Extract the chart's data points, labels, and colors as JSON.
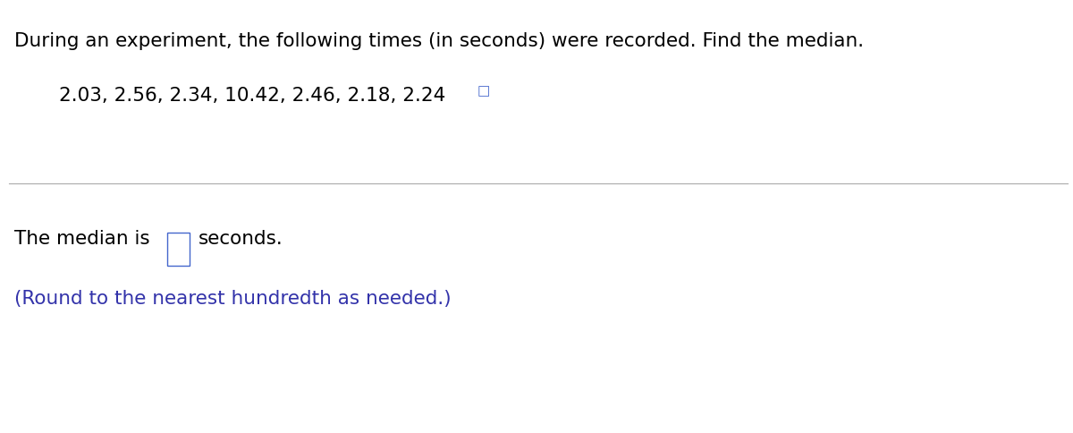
{
  "title_text": "During an experiment, the following times (in seconds) were recorded. Find the median.",
  "data_text": "2.03, 2.56, 2.34, 10.42, 2.46, 2.18, 2.24",
  "answer_prefix": "The median is ",
  "answer_suffix": "seconds.",
  "note_text": "(Round to the nearest hundredth as needed.)",
  "background_color": "#ffffff",
  "title_color": "#000000",
  "data_color": "#000000",
  "answer_color": "#000000",
  "note_color": "#3333aa",
  "title_fontsize": 15.5,
  "data_fontsize": 15.5,
  "answer_fontsize": 15.5,
  "note_fontsize": 15.5,
  "divider_color": "#aaaaaa",
  "icon_color": "#4466cc",
  "box_color": "#4466cc"
}
